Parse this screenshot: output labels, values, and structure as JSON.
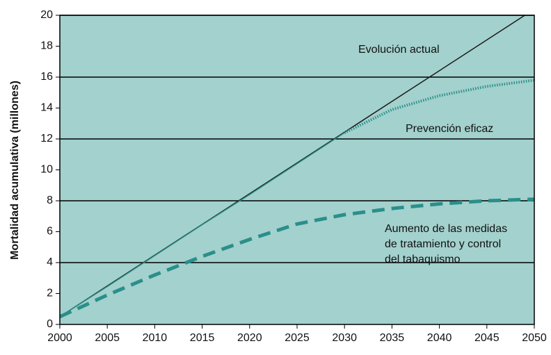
{
  "chart_data": {
    "type": "line",
    "ylabel": "Mortalidad acumulativa (millones)",
    "xlim": [
      2000,
      2050
    ],
    "xticks": [
      2000,
      2005,
      2010,
      2015,
      2020,
      2025,
      2030,
      2035,
      2040,
      2045,
      2050
    ],
    "ylim": [
      0,
      20
    ],
    "yticks": [
      0,
      2,
      4,
      6,
      8,
      10,
      12,
      14,
      16,
      18,
      20
    ],
    "grid_lines": [
      4,
      8,
      12,
      16,
      20
    ],
    "background": "#a3d1cd",
    "series": [
      {
        "name": "Evolución actual",
        "color": "#1a1a1a",
        "style": "solid",
        "x": [
          2000,
          2049
        ],
        "values": [
          0.5,
          20
        ]
      },
      {
        "name": "Prevención eficaz",
        "color": "#2a8f8a",
        "style": "dotted",
        "solid_until": 2030,
        "x": [
          2000,
          2005,
          2010,
          2015,
          2020,
          2025,
          2030,
          2035,
          2040,
          2045,
          2050
        ],
        "values": [
          0.5,
          2.45,
          4.45,
          6.45,
          8.4,
          10.4,
          12.4,
          13.9,
          14.8,
          15.4,
          15.8
        ]
      },
      {
        "name": [
          "Aumento de las medidas",
          "de tratamiento y control",
          "del tabaquismo"
        ],
        "color": "#2a8f8a",
        "style": "dashed",
        "x": [
          2000,
          2005,
          2010,
          2015,
          2020,
          2025,
          2030,
          2035,
          2040,
          2045,
          2050
        ],
        "values": [
          0.5,
          1.9,
          3.2,
          4.4,
          5.5,
          6.5,
          7.1,
          7.5,
          7.8,
          8.0,
          8.1
        ]
      }
    ]
  }
}
